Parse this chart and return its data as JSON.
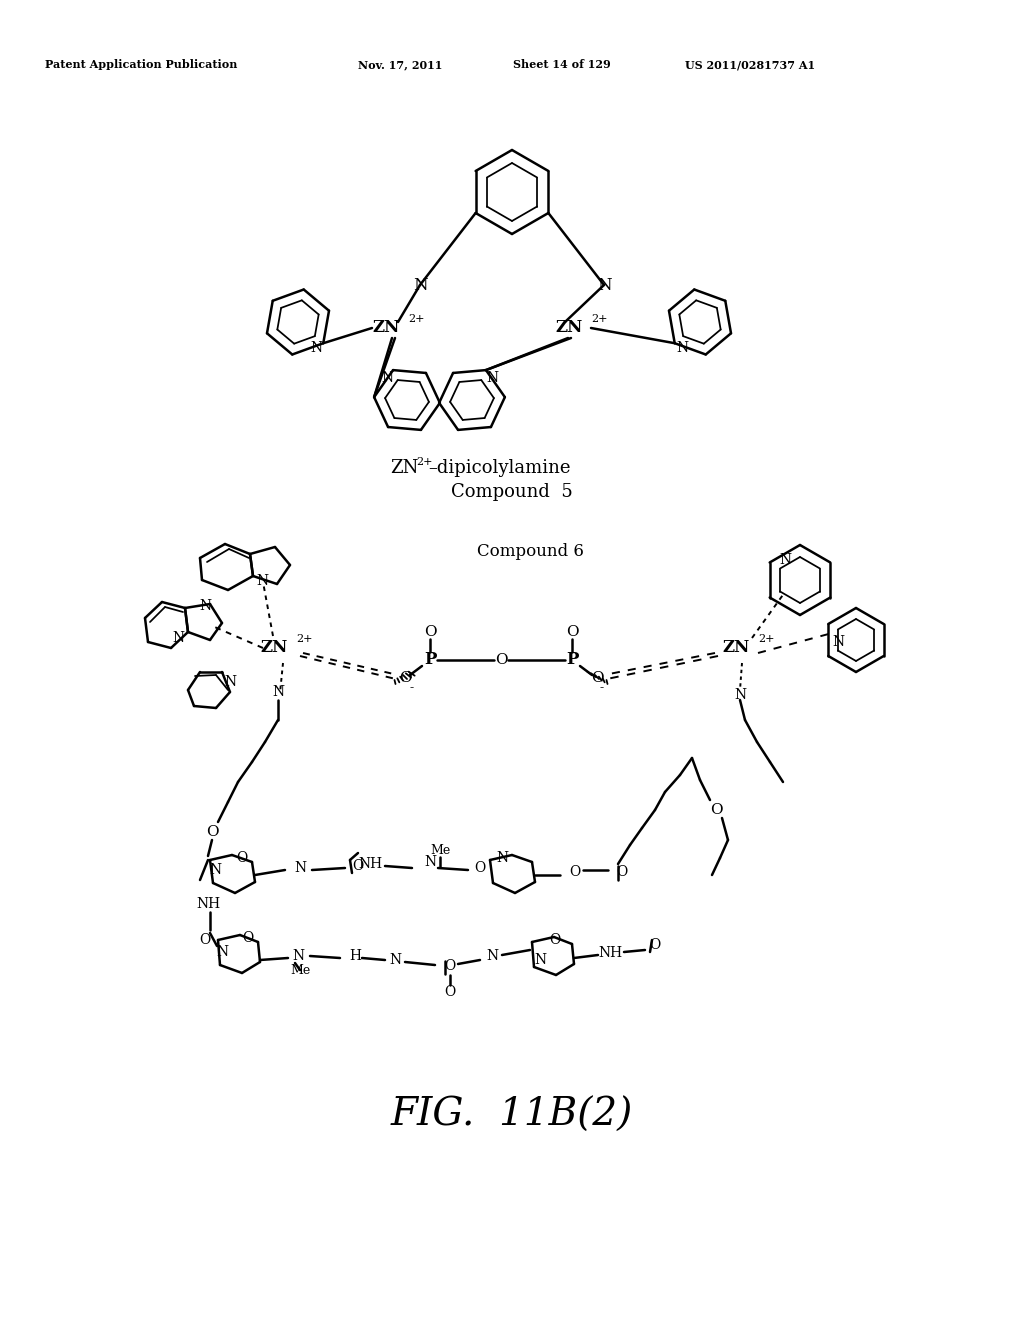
{
  "background_color": "#ffffff",
  "header_text_left": "Patent Application Publication",
  "header_date": "Nov. 17, 2011",
  "header_sheet": "Sheet 14 of 129",
  "header_patent": "US 2011/0281737 A1",
  "compound5_line1a": "ZN",
  "compound5_sup": "2+",
  "compound5_line1b": "–dipicolylamine",
  "compound5_line2": "Compound  5",
  "compound6_label": "Compound 6",
  "fig_label": "FIG.  11B(2)"
}
